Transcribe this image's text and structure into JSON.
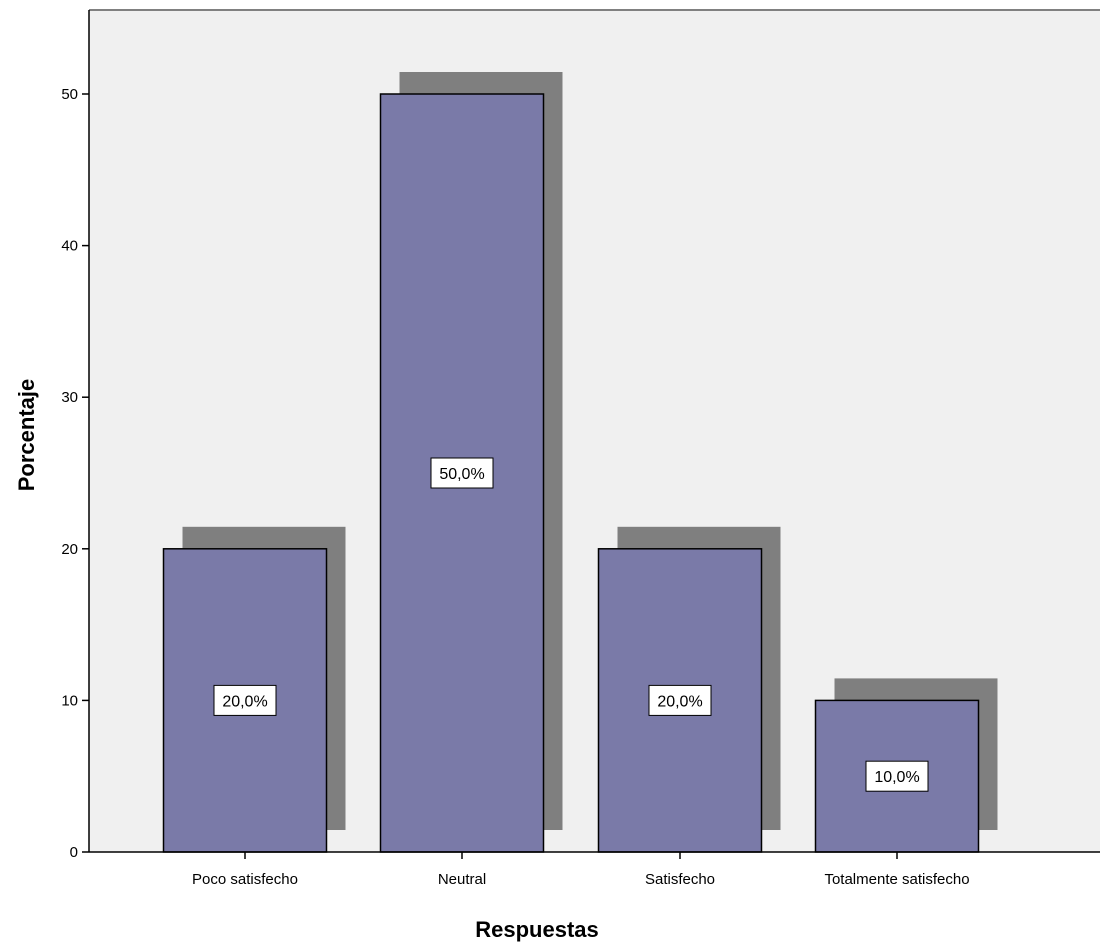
{
  "chart_data": {
    "type": "bar",
    "categories": [
      "Poco satisfecho",
      "Neutral",
      "Satisfecho",
      "Totalmente satisfecho"
    ],
    "values": [
      20,
      50,
      20,
      10
    ],
    "data_labels": [
      "20,0%",
      "50,0%",
      "20,0%",
      "10,0%"
    ],
    "xlabel": "Respuestas",
    "ylabel": "Porcentaje",
    "ylim": [
      0,
      55
    ],
    "yticks": [
      0,
      10,
      20,
      30,
      40,
      50
    ],
    "bar_style": "3d-shadow",
    "grid": false,
    "colors": {
      "bar": "#7a7aa8",
      "shadow": "#7f7f7f",
      "plot_background": "#f0f0f0",
      "axis": "#000000"
    }
  }
}
